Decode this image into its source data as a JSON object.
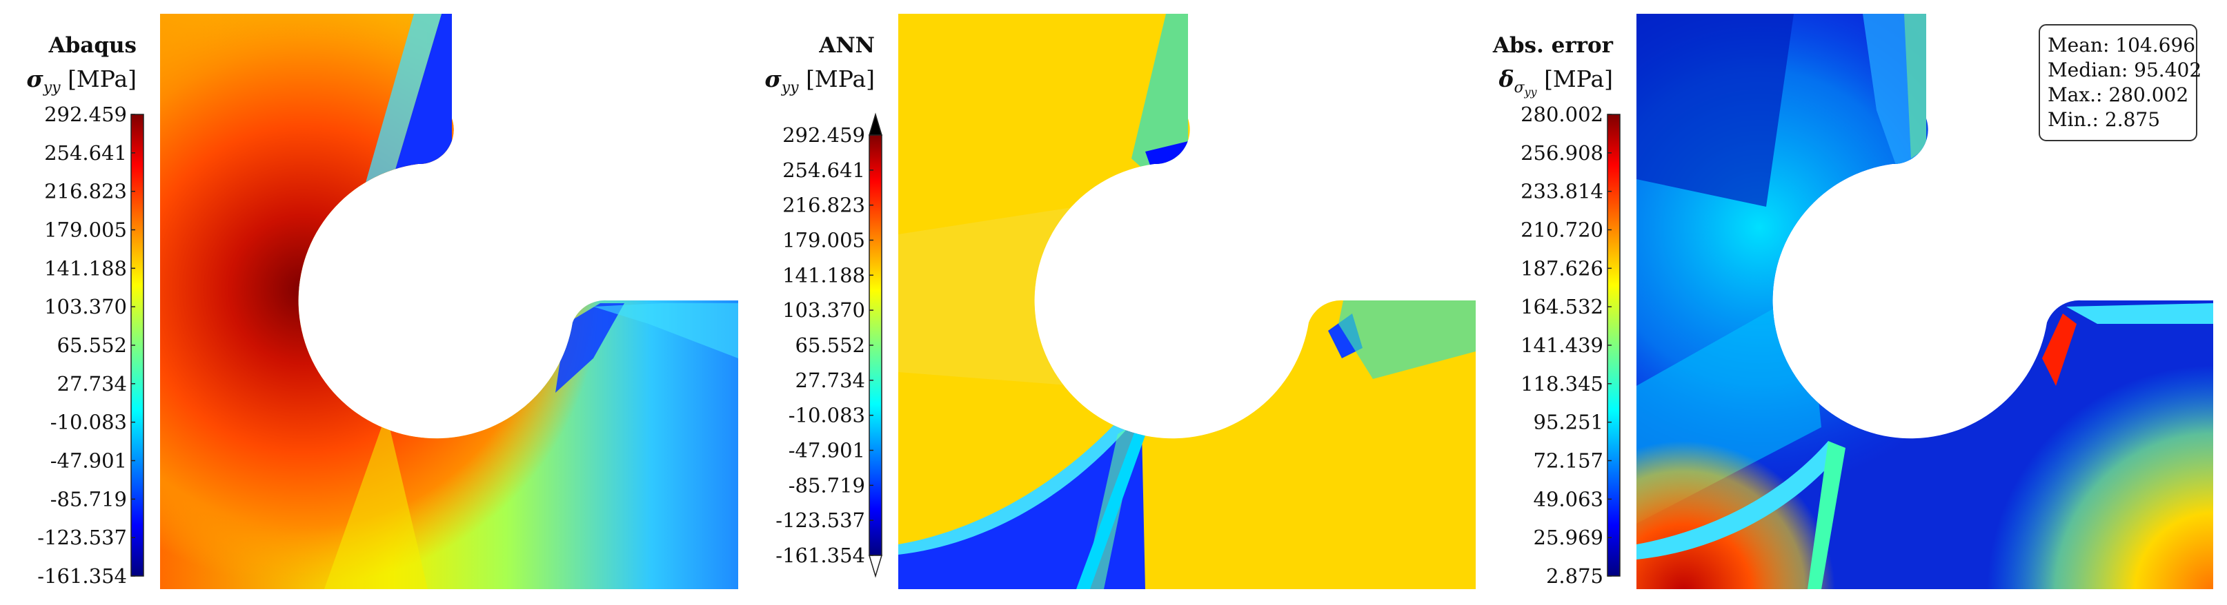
{
  "chart_data": [
    {
      "type": "heatmap",
      "title": "Abaqus",
      "quantity": "σ",
      "quantity_sub": "yy",
      "unit": "[MPa]",
      "colormap": "jet",
      "ticks": [
        "292.459",
        "254.641",
        "216.823",
        "179.005",
        "141.188",
        "103.370",
        "65.552",
        "27.734",
        "-10.083",
        "-47.901",
        "-85.719",
        "-123.537",
        "-161.354"
      ],
      "value_range": [
        -161.354,
        292.459
      ],
      "colorbar_extend": "none"
    },
    {
      "type": "heatmap",
      "title": "ANN",
      "quantity": "σ",
      "quantity_sub": "yy",
      "unit": "[MPa]",
      "colormap": "jet",
      "ticks": [
        "292.459",
        "254.641",
        "216.823",
        "179.005",
        "141.188",
        "103.370",
        "65.552",
        "27.734",
        "-10.083",
        "-47.901",
        "-85.719",
        "-123.537",
        "-161.354"
      ],
      "value_range": [
        -161.354,
        292.459
      ],
      "colorbar_extend": "both"
    },
    {
      "type": "heatmap",
      "title": "Abs. error",
      "quantity": "δ",
      "quantity_sub": "σ",
      "quantity_subsub": "yy",
      "unit": "[MPa]",
      "colormap": "jet",
      "ticks": [
        "280.002",
        "256.908",
        "233.814",
        "210.720",
        "187.626",
        "164.532",
        "141.439",
        "118.345",
        "95.251",
        "72.157",
        "49.063",
        "25.969",
        "2.875"
      ],
      "value_range": [
        2.875,
        280.002
      ],
      "colorbar_extend": "none",
      "stats": [
        "Mean: 104.696",
        "Median: 95.402",
        "Max.: 280.002",
        "Min.: 2.875"
      ]
    }
  ],
  "colors": {
    "jet_dark_blue": "#00007f",
    "jet_blue": "#0000ff",
    "jet_cyan": "#00ffff",
    "jet_yellow": "#ffff00",
    "jet_red": "#ff0000",
    "jet_dark_red": "#7f0000"
  }
}
